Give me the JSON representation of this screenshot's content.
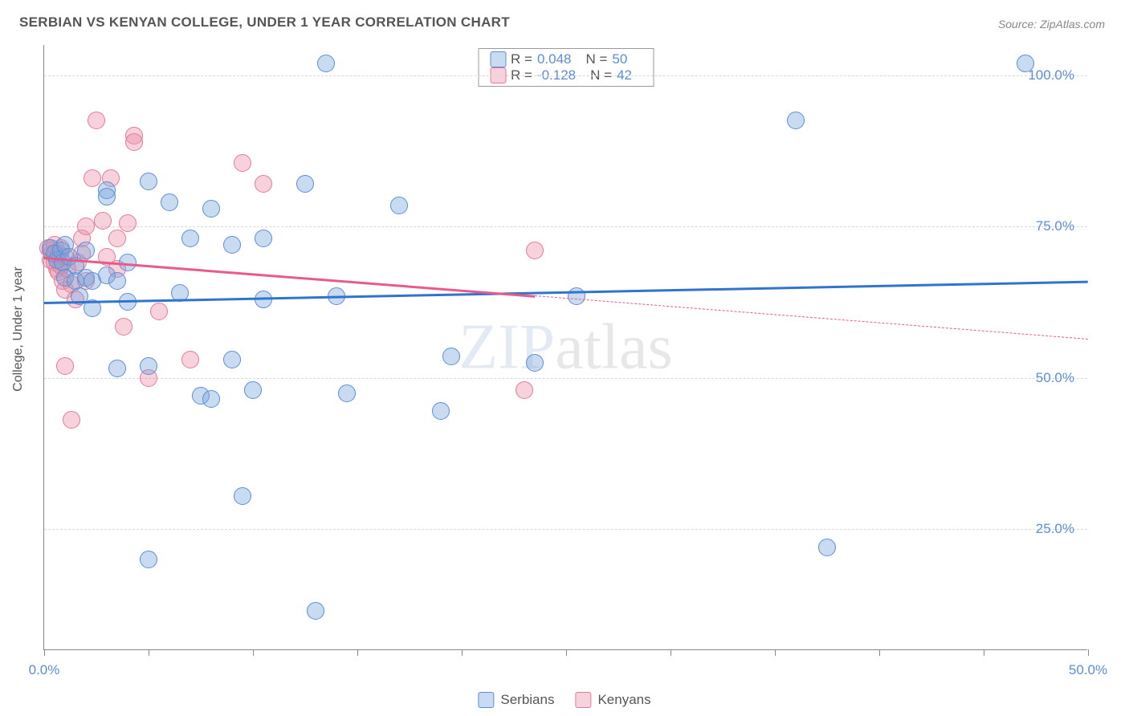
{
  "chart": {
    "title": "SERBIAN VS KENYAN COLLEGE, UNDER 1 YEAR CORRELATION CHART",
    "source": "Source: ZipAtlas.com",
    "y_axis_label": "College, Under 1 year",
    "watermark_a": "ZIP",
    "watermark_b": "atlas",
    "xlim": [
      0,
      50
    ],
    "ylim": [
      5,
      105
    ],
    "x_ticks": [
      0,
      5,
      10,
      15,
      20,
      25,
      30,
      35,
      40,
      45,
      50
    ],
    "x_tick_labels": {
      "0": "0.0%",
      "50": "50.0%"
    },
    "y_gridlines": [
      25,
      50,
      75,
      100
    ],
    "y_tick_labels": {
      "25": "25.0%",
      "50": "50.0%",
      "75": "75.0%",
      "100": "100.0%"
    },
    "marker_radius": 11,
    "marker_border_width": 1.5,
    "background": "#ffffff",
    "grid_color": "#d8d8d8",
    "axis_color": "#888888",
    "label_color": "#5b8dd6",
    "series": {
      "serbians": {
        "label": "Serbians",
        "fill": "rgba(120, 165, 220, 0.40)",
        "stroke": "#5b8dd6",
        "line_color": "#2f74d0",
        "trend": {
          "y_at_x0": 62.5,
          "y_at_x50": 66.0,
          "x_extent": 50,
          "dashed_from": null
        },
        "R": "0.048",
        "N": "50",
        "points": [
          [
            0.3,
            71.5
          ],
          [
            0.5,
            70.5
          ],
          [
            0.6,
            69.5
          ],
          [
            0.8,
            71
          ],
          [
            0.9,
            69
          ],
          [
            1.0,
            66.5
          ],
          [
            1.0,
            72
          ],
          [
            1.2,
            70
          ],
          [
            1.5,
            66
          ],
          [
            1.7,
            63.5
          ],
          [
            1.5,
            68.5
          ],
          [
            2.0,
            66.5
          ],
          [
            2.0,
            71
          ],
          [
            2.3,
            66
          ],
          [
            2.3,
            61.5
          ],
          [
            3.0,
            67
          ],
          [
            3.0,
            81
          ],
          [
            3.0,
            80
          ],
          [
            3.5,
            66
          ],
          [
            3.5,
            51.5
          ],
          [
            4.0,
            69
          ],
          [
            4.0,
            62.5
          ],
          [
            5.0,
            82.5
          ],
          [
            5.0,
            52
          ],
          [
            5.0,
            20
          ],
          [
            6.0,
            79
          ],
          [
            6.5,
            64
          ],
          [
            7.0,
            73
          ],
          [
            7.5,
            47
          ],
          [
            8.0,
            46.5
          ],
          [
            8.0,
            78
          ],
          [
            9.0,
            72
          ],
          [
            9.0,
            53
          ],
          [
            9.5,
            30.5
          ],
          [
            10.0,
            48
          ],
          [
            10.5,
            63
          ],
          [
            10.5,
            73
          ],
          [
            12.5,
            82
          ],
          [
            13.0,
            11.5
          ],
          [
            13.5,
            102
          ],
          [
            14.0,
            63.5
          ],
          [
            14.5,
            47.5
          ],
          [
            17.0,
            78.5
          ],
          [
            19.0,
            44.5
          ],
          [
            19.5,
            53.5
          ],
          [
            23.5,
            52.5
          ],
          [
            25.5,
            63.5
          ],
          [
            36.0,
            92.5
          ],
          [
            37.5,
            22
          ],
          [
            47.0,
            102
          ]
        ]
      },
      "kenyans": {
        "label": "Kenyans",
        "fill": "rgba(235, 140, 165, 0.40)",
        "stroke": "#e47a9a",
        "line_color": "#e85a8a",
        "trend": {
          "y_at_x0": 70.0,
          "y_at_x50": 56.5,
          "x_extent": 23.5,
          "dashed_from": 23.5
        },
        "R": "-0.128",
        "N": "42",
        "points": [
          [
            0.2,
            71.5
          ],
          [
            0.3,
            71
          ],
          [
            0.3,
            69.5
          ],
          [
            0.4,
            70.5
          ],
          [
            0.5,
            69
          ],
          [
            0.5,
            72
          ],
          [
            0.6,
            68
          ],
          [
            0.7,
            70.5
          ],
          [
            0.7,
            67.5
          ],
          [
            0.8,
            71.5
          ],
          [
            0.8,
            68.5
          ],
          [
            0.9,
            66
          ],
          [
            1.0,
            70
          ],
          [
            1.0,
            64.5
          ],
          [
            1.1,
            68
          ],
          [
            1.0,
            52
          ],
          [
            1.3,
            65.5
          ],
          [
            1.5,
            63
          ],
          [
            1.6,
            69
          ],
          [
            1.8,
            70.5
          ],
          [
            1.8,
            73
          ],
          [
            2.0,
            75
          ],
          [
            2.0,
            66
          ],
          [
            1.3,
            43
          ],
          [
            2.3,
            83
          ],
          [
            2.5,
            92.5
          ],
          [
            2.8,
            76
          ],
          [
            3.0,
            70
          ],
          [
            3.2,
            83
          ],
          [
            3.5,
            68
          ],
          [
            3.5,
            73
          ],
          [
            3.8,
            58.5
          ],
          [
            4.0,
            75.5
          ],
          [
            4.3,
            90
          ],
          [
            4.3,
            89
          ],
          [
            5.0,
            50
          ],
          [
            5.5,
            61
          ],
          [
            7.0,
            53
          ],
          [
            9.5,
            85.5
          ],
          [
            10.5,
            82
          ],
          [
            23.5,
            71
          ],
          [
            23.0,
            48
          ]
        ]
      }
    },
    "legend_top": [
      {
        "swatch_fill": "rgba(120, 165, 220, 0.40)",
        "swatch_stroke": "#5b8dd6",
        "r_label": "R =",
        "r_value": "0.048",
        "n_label": "N =",
        "n_value": "50"
      },
      {
        "swatch_fill": "rgba(235, 140, 165, 0.40)",
        "swatch_stroke": "#e47a9a",
        "r_label": "R =",
        "r_value": "-0.128",
        "n_label": "N =",
        "n_value": "42"
      }
    ]
  }
}
